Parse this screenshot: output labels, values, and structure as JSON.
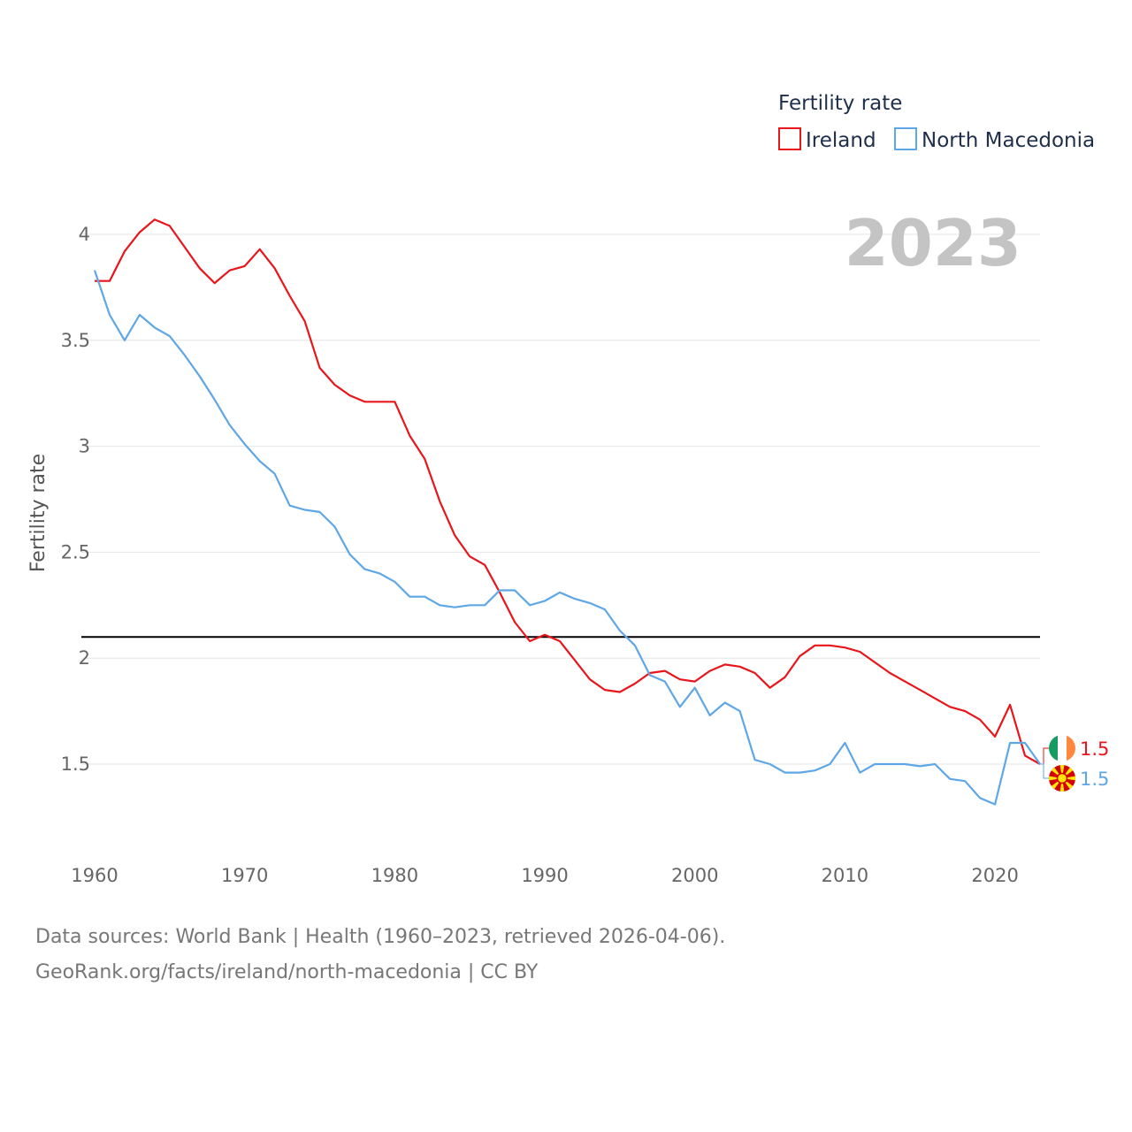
{
  "chart_data": {
    "type": "line",
    "legend_title": "Fertility rate",
    "ylabel": "Fertility rate",
    "year_label": "2023",
    "xlim": [
      1960,
      2023
    ],
    "ylim": [
      1.25,
      4.15
    ],
    "y_ticks": [
      1.5,
      2,
      2.5,
      3,
      3.5,
      4
    ],
    "y_tick_labels": [
      "1.5",
      "2",
      "2.5",
      "3",
      "3.5",
      "4"
    ],
    "x_ticks": [
      1960,
      1970,
      1980,
      1990,
      2000,
      2010,
      2020
    ],
    "x_tick_labels": [
      "1960",
      "1970",
      "1980",
      "1990",
      "2000",
      "2010",
      "2020"
    ],
    "reference_line": 2.1,
    "x": [
      1960,
      1961,
      1962,
      1963,
      1964,
      1965,
      1966,
      1967,
      1968,
      1969,
      1970,
      1971,
      1972,
      1973,
      1974,
      1975,
      1976,
      1977,
      1978,
      1979,
      1980,
      1981,
      1982,
      1983,
      1984,
      1985,
      1986,
      1987,
      1988,
      1989,
      1990,
      1991,
      1992,
      1993,
      1994,
      1995,
      1996,
      1997,
      1998,
      1999,
      2000,
      2001,
      2002,
      2003,
      2004,
      2005,
      2006,
      2007,
      2008,
      2009,
      2010,
      2011,
      2012,
      2013,
      2014,
      2015,
      2016,
      2017,
      2018,
      2019,
      2020,
      2021,
      2022,
      2023
    ],
    "series": [
      {
        "name": "Ireland",
        "color": "#e8161b",
        "end_label": "1.5",
        "values": [
          3.78,
          3.78,
          3.92,
          4.01,
          4.07,
          4.04,
          3.94,
          3.84,
          3.77,
          3.83,
          3.85,
          3.93,
          3.84,
          3.71,
          3.59,
          3.37,
          3.29,
          3.24,
          3.21,
          3.21,
          3.21,
          3.05,
          2.94,
          2.74,
          2.58,
          2.48,
          2.44,
          2.31,
          2.17,
          2.08,
          2.11,
          2.08,
          1.99,
          1.9,
          1.85,
          1.84,
          1.88,
          1.93,
          1.94,
          1.9,
          1.89,
          1.94,
          1.97,
          1.96,
          1.93,
          1.86,
          1.91,
          2.01,
          2.06,
          2.06,
          2.05,
          2.03,
          1.98,
          1.93,
          1.89,
          1.85,
          1.81,
          1.77,
          1.75,
          1.71,
          1.63,
          1.78,
          1.54,
          1.5
        ]
      },
      {
        "name": "North Macedonia",
        "color": "#5ea7e6",
        "end_label": "1.5",
        "values": [
          3.83,
          3.62,
          3.5,
          3.62,
          3.56,
          3.52,
          3.43,
          3.33,
          3.22,
          3.1,
          3.01,
          2.93,
          2.87,
          2.72,
          2.7,
          2.69,
          2.62,
          2.49,
          2.42,
          2.4,
          2.36,
          2.29,
          2.29,
          2.25,
          2.24,
          2.25,
          2.25,
          2.32,
          2.32,
          2.25,
          2.27,
          2.31,
          2.28,
          2.26,
          2.23,
          2.13,
          2.06,
          1.92,
          1.89,
          1.77,
          1.86,
          1.73,
          1.79,
          1.75,
          1.52,
          1.5,
          1.46,
          1.46,
          1.47,
          1.5,
          1.6,
          1.46,
          1.5,
          1.5,
          1.5,
          1.49,
          1.5,
          1.43,
          1.42,
          1.34,
          1.31,
          1.6,
          1.6,
          1.5
        ]
      }
    ]
  },
  "footer": {
    "line1": "Data sources: World Bank | Health (1960–2023, retrieved 2026-04-06).",
    "line2": "GeoRank.org/facts/ireland/north-macedonia | CC BY"
  }
}
